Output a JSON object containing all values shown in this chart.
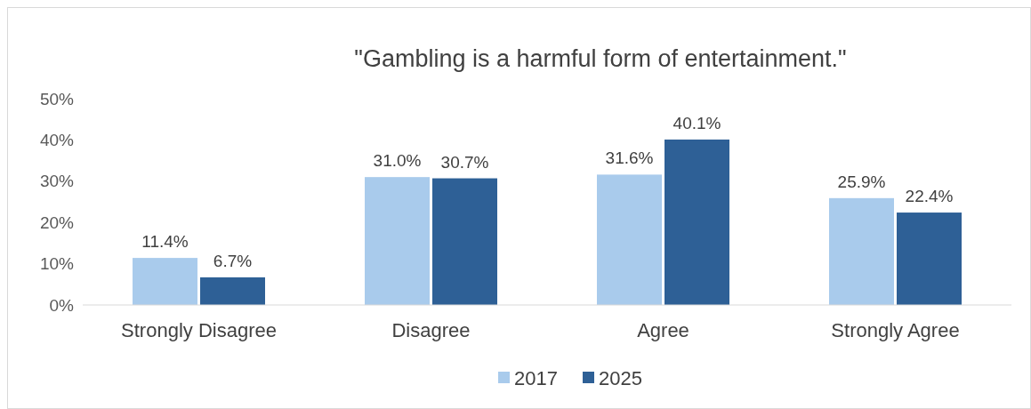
{
  "chart_data": {
    "type": "bar",
    "title": "\"Gambling is a harmful form of entertainment.\"",
    "categories": [
      "Strongly Disagree",
      "Disagree",
      "Agree",
      "Strongly Agree"
    ],
    "series": [
      {
        "name": "2017",
        "color": "#a9cbec",
        "values": [
          11.4,
          31.0,
          31.6,
          25.9
        ],
        "value_labels": [
          "11.4%",
          "31.0%",
          "31.6%",
          "25.9%"
        ]
      },
      {
        "name": "2025",
        "color": "#2e6096",
        "values": [
          6.7,
          30.7,
          40.1,
          22.4
        ],
        "value_labels": [
          "6.7%",
          "30.7%",
          "40.1%",
          "22.4%"
        ]
      }
    ],
    "ylim": [
      0,
      50
    ],
    "yticks": [
      {
        "value": 0,
        "label": "0%"
      },
      {
        "value": 10,
        "label": "10%"
      },
      {
        "value": 20,
        "label": "20%"
      },
      {
        "value": 30,
        "label": "30%"
      },
      {
        "value": 40,
        "label": "40%"
      },
      {
        "value": 50,
        "label": "50%"
      }
    ],
    "grid": false,
    "legend": "bottom"
  }
}
